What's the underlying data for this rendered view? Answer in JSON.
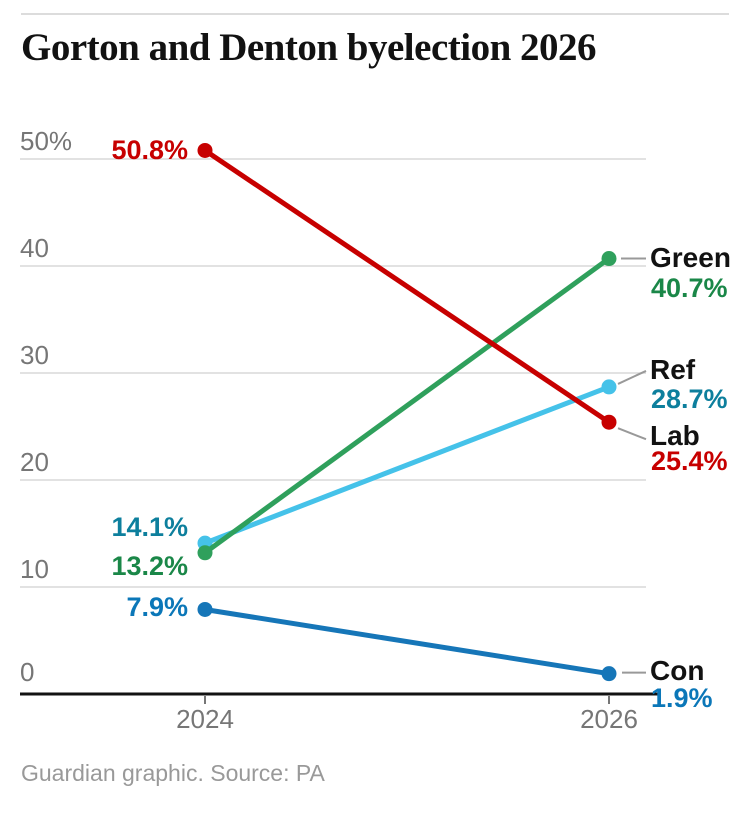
{
  "page": {
    "title": "Gorton and Denton byelection 2026",
    "footer": "Guardian graphic. Source: PA"
  },
  "chart_data": {
    "type": "line",
    "variant": "slope",
    "title": "Gorton and Denton byelection 2026",
    "source": "Guardian graphic. Source: PA",
    "categories": [
      "2024",
      "2026"
    ],
    "series": [
      {
        "name": "Ref",
        "values": [
          14.1,
          28.7
        ],
        "start_label": "14.1%",
        "end_label": "28.7%",
        "line_color": "#45c2e9",
        "text_color": "#0d7f9d"
      },
      {
        "name": "Green",
        "values": [
          13.2,
          40.7
        ],
        "start_label": "13.2%",
        "end_label": "40.7%",
        "line_color": "#2fa05c",
        "text_color": "#1a8748"
      },
      {
        "name": "Lab",
        "values": [
          50.8,
          25.4
        ],
        "start_label": "50.8%",
        "end_label": "25.4%",
        "line_color": "#c70000",
        "text_color": "#c70000"
      },
      {
        "name": "Con",
        "values": [
          7.9,
          1.9
        ],
        "start_label": "7.9%",
        "end_label": "1.9%",
        "line_color": "#1676b8",
        "text_color": "#0b77b8"
      }
    ],
    "yticks": [
      {
        "value": 50,
        "label": "50%"
      },
      {
        "value": 40,
        "label": "40"
      },
      {
        "value": 30,
        "label": "30"
      },
      {
        "value": 20,
        "label": "20"
      },
      {
        "value": 10,
        "label": "10"
      },
      {
        "value": 0,
        "label": "0"
      }
    ],
    "ylim": [
      0,
      52
    ],
    "grid": true,
    "legend_position": "right"
  }
}
